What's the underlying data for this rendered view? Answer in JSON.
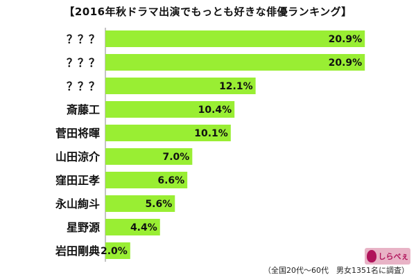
{
  "chart_data": {
    "type": "bar",
    "orientation": "horizontal",
    "title": "【2016年秋ドラマ出演でもっとも好きな俳優ランキング】",
    "categories": [
      "？？？",
      "？？？",
      "？？？",
      "斎藤工",
      "菅田将暉",
      "山田涼介",
      "窪田正孝",
      "永山絢斗",
      "星野源",
      "岩田剛典"
    ],
    "values": [
      20.9,
      20.9,
      12.1,
      10.4,
      10.1,
      7.0,
      6.6,
      5.6,
      4.4,
      2.0
    ],
    "value_labels": [
      "20.9%",
      "20.9%",
      "12.1%",
      "10.4%",
      "10.1%",
      "7.0%",
      "6.6%",
      "5.6%",
      "4.4%",
      "2.0%"
    ],
    "xlim": [
      0,
      21
    ],
    "bar_color": "#99ee33",
    "grid": false,
    "note": "（全国20代～60代　男女1351名に調査）"
  },
  "logo": {
    "text": "しらべぇ",
    "color": "#b0145b"
  }
}
